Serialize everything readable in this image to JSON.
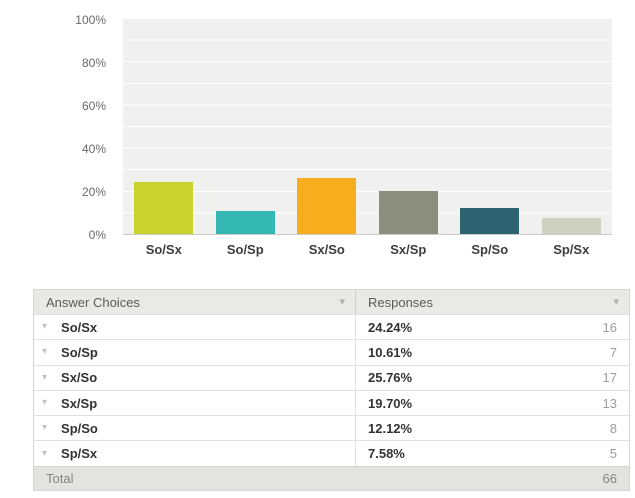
{
  "chart_data": {
    "type": "bar",
    "title": "",
    "xlabel": "",
    "ylabel": "",
    "categories": [
      "So/Sx",
      "So/Sp",
      "Sx/So",
      "Sx/Sp",
      "Sp/So",
      "Sp/Sx"
    ],
    "values": [
      24.24,
      10.61,
      25.76,
      19.7,
      12.12,
      7.58
    ],
    "colors": [
      "#c9d22e",
      "#35b7b3",
      "#f6ad1e",
      "#8b8d7d",
      "#2e6372",
      "#d0d0c1"
    ],
    "yticks": [
      "100%",
      "80%",
      "60%",
      "40%",
      "20%",
      "0%"
    ],
    "ylim": [
      0,
      100
    ],
    "grid": "horizontal white gridlines every 10% on light gray plot background",
    "legend": "none",
    "plot_bg": "#f0f0ee"
  },
  "table": {
    "headers": {
      "answer_choices": "Answer Choices",
      "responses": "Responses"
    },
    "rows": [
      {
        "choice": "So/Sx",
        "pct": "24.24%",
        "count": "16"
      },
      {
        "choice": "So/Sp",
        "pct": "10.61%",
        "count": "7"
      },
      {
        "choice": "Sx/So",
        "pct": "25.76%",
        "count": "17"
      },
      {
        "choice": "Sx/Sp",
        "pct": "19.70%",
        "count": "13"
      },
      {
        "choice": "Sp/So",
        "pct": "12.12%",
        "count": "8"
      },
      {
        "choice": "Sp/Sx",
        "pct": "7.58%",
        "count": "5"
      }
    ],
    "total": {
      "label": "Total",
      "count": "66"
    }
  },
  "icons": {
    "sort_arrow": "▾",
    "row_expand_arrow": "▾"
  }
}
